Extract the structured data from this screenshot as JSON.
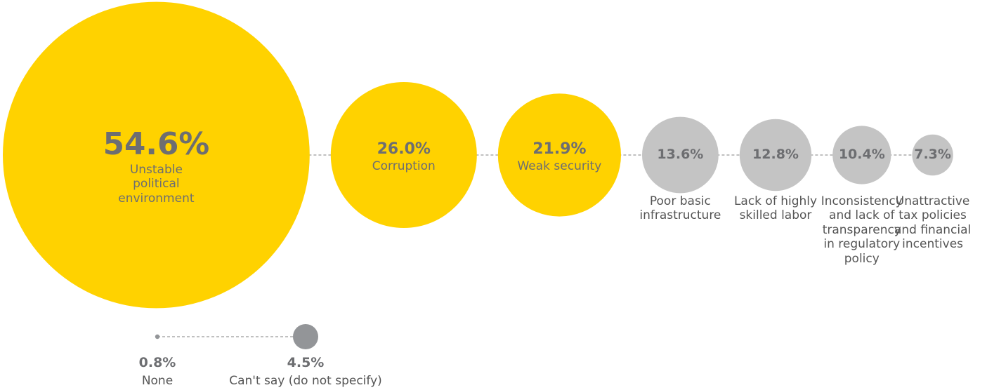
{
  "chart_data": [
    {
      "type": "bubble",
      "categories": [
        "Unstable political environment",
        "Corruption",
        "Weak security",
        "Poor basic infrastructure",
        "Lack of highly skilled labor",
        "Inconsistency and lack of transparency in regulatory policy",
        "Unattractive tax policies and financial incentives"
      ],
      "values": [
        54.6,
        26.0,
        21.9,
        13.6,
        12.8,
        10.4,
        7.3
      ],
      "value_labels": [
        "54.6%",
        "26.0%",
        "21.9%",
        "13.6%",
        "12.8%",
        "10.4%",
        "7.3%"
      ],
      "colors": [
        "#ffd200",
        "#ffd200",
        "#ffd200",
        "#c4c4c4",
        "#c4c4c4",
        "#c4c4c4",
        "#c4c4c4"
      ]
    },
    {
      "type": "bubble",
      "categories": [
        "None",
        "Can't say (do not specify)"
      ],
      "values": [
        0.8,
        4.5
      ],
      "value_labels": [
        "0.8%",
        "4.5%"
      ],
      "colors": [
        "#939598",
        "#939598"
      ]
    }
  ]
}
